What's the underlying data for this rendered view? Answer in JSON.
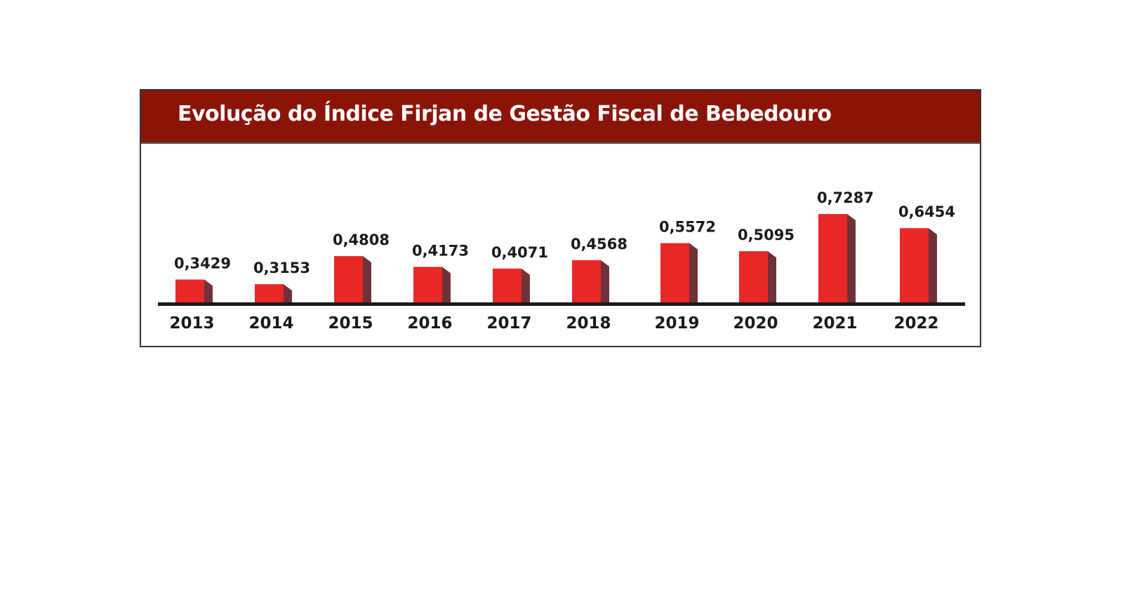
{
  "chart_data": {
    "type": "bar",
    "title": "Evolução do Índice Firjan de Gestão Fiscal de Bebedouro",
    "categories": [
      "2013",
      "2014",
      "2015",
      "2016",
      "2017",
      "2018",
      "2019",
      "2020",
      "2021",
      "2022"
    ],
    "values": [
      0.3429,
      0.3153,
      0.4808,
      0.4173,
      0.4071,
      0.4568,
      0.5572,
      0.5095,
      0.7287,
      0.6454
    ],
    "value_labels": [
      "0,3429",
      "0,3153",
      "0,4808",
      "0,4173",
      "0,4071",
      "0,4568",
      "0,5572",
      "0,5095",
      "0,7287",
      "0,6454"
    ],
    "xlabel": "",
    "ylabel": "",
    "ylim": [
      0.2,
      0.8
    ],
    "grid": false,
    "colors": {
      "bar_front": "#e82826",
      "bar_side": "#6e3338",
      "header": "#8b1408",
      "axis": "#1a1a1a"
    }
  }
}
